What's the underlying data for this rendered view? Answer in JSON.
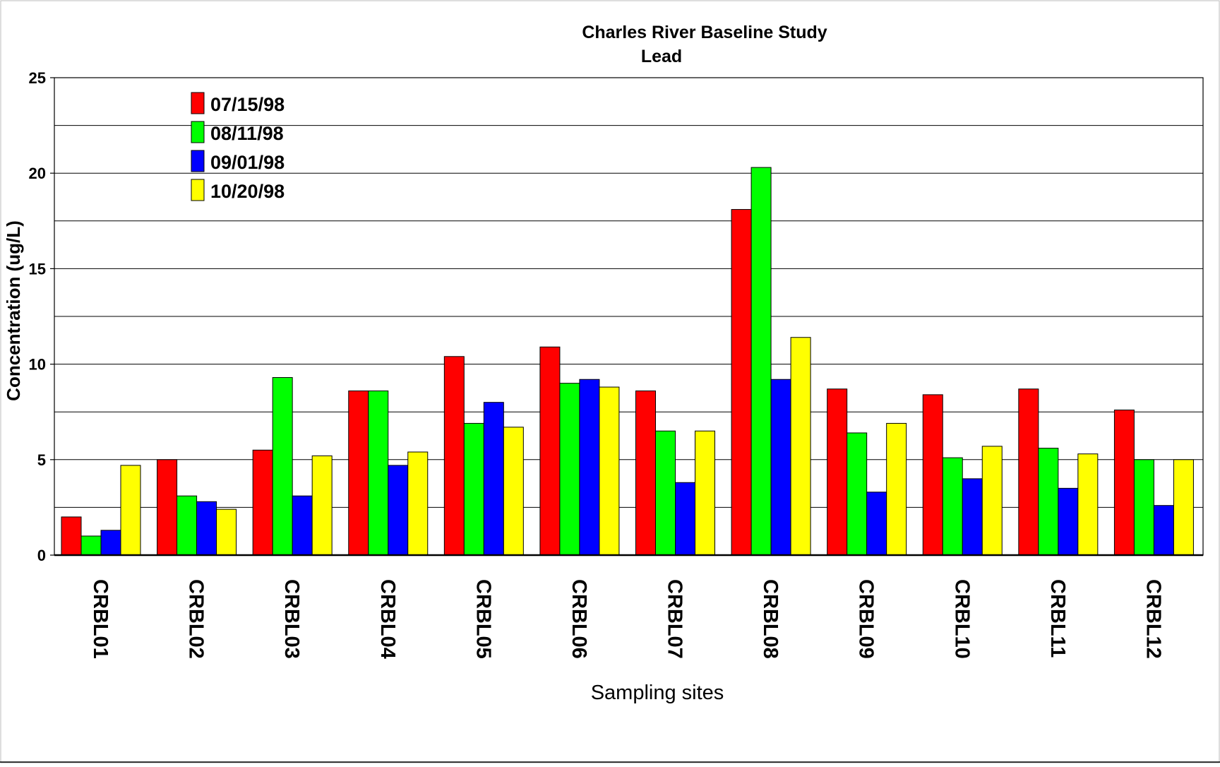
{
  "chart_data": {
    "type": "bar",
    "title": "Charles River Baseline Study",
    "subtitle": "Lead",
    "xlabel": "Sampling sites",
    "ylabel": "Concentration (ug/L)",
    "ylim": [
      0,
      25
    ],
    "y_ticks": [
      0,
      5,
      10,
      15,
      20,
      25
    ],
    "grid_step": 2.5,
    "grid": true,
    "legend_position": "top-left",
    "categories": [
      "CRBL01",
      "CRBL02",
      "CRBL03",
      "CRBL04",
      "CRBL05",
      "CRBL06",
      "CRBL07",
      "CRBL08",
      "CRBL09",
      "CRBL10",
      "CRBL11",
      "CRBL12"
    ],
    "series": [
      {
        "name": "07/15/98",
        "color": "#ff0000",
        "values": [
          2.0,
          5.0,
          5.5,
          8.6,
          10.4,
          10.9,
          8.6,
          18.1,
          8.7,
          8.4,
          8.7,
          7.6
        ]
      },
      {
        "name": "08/11/98",
        "color": "#00ff00",
        "values": [
          1.0,
          3.1,
          9.3,
          8.6,
          6.9,
          9.0,
          6.5,
          20.3,
          6.4,
          5.1,
          5.6,
          5.0
        ]
      },
      {
        "name": "09/01/98",
        "color": "#0000ff",
        "values": [
          1.3,
          2.8,
          3.1,
          4.7,
          8.0,
          9.2,
          3.8,
          9.2,
          3.3,
          4.0,
          3.5,
          2.6
        ]
      },
      {
        "name": "10/20/98",
        "color": "#ffff00",
        "values": [
          4.7,
          2.4,
          5.2,
          5.4,
          6.7,
          8.8,
          6.5,
          11.4,
          6.9,
          5.7,
          5.3,
          5.0
        ]
      }
    ]
  }
}
